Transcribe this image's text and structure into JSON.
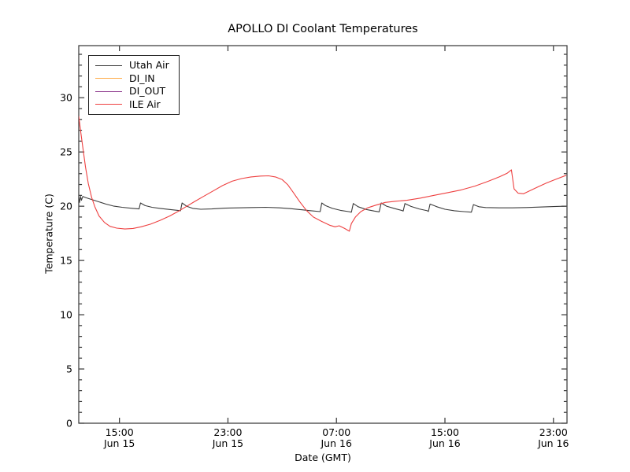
{
  "title": "APOLLO DI Coolant Temperatures",
  "axes": {
    "xlabel": "Date (GMT)",
    "ylabel": "Temperature (C)"
  },
  "legend": {
    "position": "upper left",
    "items": [
      {
        "label": "Utah Air",
        "color": "#3c3c3c"
      },
      {
        "label": "DI_IN",
        "color": "#ffaa44"
      },
      {
        "label": "DI_OUT",
        "color": "#8e3a8e"
      },
      {
        "label": "ILE Air",
        "color": "#ee4040"
      }
    ]
  },
  "chart_data": {
    "type": "line",
    "title": "APOLLO DI Coolant Temperatures",
    "xlabel": "Date (GMT)",
    "ylabel": "Temperature (C)",
    "x_unit": "hours since Jun 15 00:00 GMT",
    "xlim": [
      12,
      48
    ],
    "ylim": [
      0,
      34.8
    ],
    "grid": false,
    "yticks": [
      0,
      5,
      10,
      15,
      20,
      25,
      30
    ],
    "y_minor_step": 1,
    "xticks": [
      {
        "t": 15,
        "time": "15:00",
        "date": "Jun 15"
      },
      {
        "t": 23,
        "time": "23:00",
        "date": "Jun 15"
      },
      {
        "t": 31,
        "time": "07:00",
        "date": "Jun 16"
      },
      {
        "t": 39,
        "time": "15:00",
        "date": "Jun 16"
      },
      {
        "t": 47,
        "time": "23:00",
        "date": "Jun 16"
      }
    ],
    "series": [
      {
        "name": "Utah Air",
        "color": "#3c3c3c",
        "points": [
          [
            12.0,
            21.0
          ],
          [
            12.06,
            20.35
          ],
          [
            12.14,
            20.9
          ],
          [
            12.2,
            20.55
          ],
          [
            12.3,
            20.9
          ],
          [
            12.5,
            20.8
          ],
          [
            13.0,
            20.6
          ],
          [
            13.5,
            20.4
          ],
          [
            14.0,
            20.2
          ],
          [
            14.6,
            20.0
          ],
          [
            15.2,
            19.9
          ],
          [
            16.0,
            19.8
          ],
          [
            16.45,
            19.75
          ],
          [
            16.55,
            20.3
          ],
          [
            16.9,
            20.05
          ],
          [
            17.4,
            19.9
          ],
          [
            18.0,
            19.8
          ],
          [
            18.7,
            19.7
          ],
          [
            19.3,
            19.62
          ],
          [
            19.5,
            19.58
          ],
          [
            19.62,
            20.3
          ],
          [
            19.95,
            20.0
          ],
          [
            20.4,
            19.8
          ],
          [
            21.0,
            19.72
          ],
          [
            21.8,
            19.75
          ],
          [
            22.8,
            19.82
          ],
          [
            23.8,
            19.85
          ],
          [
            24.8,
            19.88
          ],
          [
            25.8,
            19.9
          ],
          [
            26.8,
            19.85
          ],
          [
            27.6,
            19.78
          ],
          [
            28.4,
            19.68
          ],
          [
            29.0,
            19.6
          ],
          [
            29.8,
            19.5
          ],
          [
            29.92,
            20.3
          ],
          [
            30.2,
            20.05
          ],
          [
            30.7,
            19.8
          ],
          [
            31.3,
            19.62
          ],
          [
            31.9,
            19.5
          ],
          [
            32.1,
            19.45
          ],
          [
            32.24,
            20.25
          ],
          [
            32.6,
            19.95
          ],
          [
            33.2,
            19.7
          ],
          [
            33.8,
            19.55
          ],
          [
            34.15,
            19.48
          ],
          [
            34.3,
            20.3
          ],
          [
            34.7,
            20.0
          ],
          [
            35.3,
            19.78
          ],
          [
            35.85,
            19.6
          ],
          [
            35.92,
            19.55
          ],
          [
            36.05,
            20.25
          ],
          [
            36.5,
            19.98
          ],
          [
            37.1,
            19.75
          ],
          [
            37.7,
            19.58
          ],
          [
            37.78,
            19.52
          ],
          [
            37.9,
            20.2
          ],
          [
            38.4,
            19.95
          ],
          [
            39.0,
            19.72
          ],
          [
            39.7,
            19.58
          ],
          [
            40.4,
            19.5
          ],
          [
            40.95,
            19.45
          ],
          [
            41.1,
            20.15
          ],
          [
            41.5,
            19.95
          ],
          [
            42.0,
            19.88
          ],
          [
            43.0,
            19.85
          ],
          [
            44.0,
            19.85
          ],
          [
            45.0,
            19.88
          ],
          [
            46.0,
            19.92
          ],
          [
            47.0,
            19.97
          ],
          [
            47.95,
            20.0
          ]
        ]
      },
      {
        "name": "DI_IN",
        "color": "#ffaa44",
        "points": []
      },
      {
        "name": "DI_OUT",
        "color": "#8e3a8e",
        "points": []
      },
      {
        "name": "ILE Air",
        "color": "#ee4040",
        "points": [
          [
            12.0,
            28.3
          ],
          [
            12.15,
            26.8
          ],
          [
            12.3,
            25.4
          ],
          [
            12.5,
            23.6
          ],
          [
            12.7,
            22.1
          ],
          [
            12.95,
            20.8
          ],
          [
            13.2,
            19.9
          ],
          [
            13.5,
            19.1
          ],
          [
            13.9,
            18.5
          ],
          [
            14.3,
            18.15
          ],
          [
            14.8,
            17.98
          ],
          [
            15.4,
            17.9
          ],
          [
            16.0,
            17.95
          ],
          [
            16.6,
            18.1
          ],
          [
            17.3,
            18.35
          ],
          [
            18.0,
            18.7
          ],
          [
            18.7,
            19.1
          ],
          [
            19.3,
            19.5
          ],
          [
            19.9,
            19.95
          ],
          [
            20.5,
            20.4
          ],
          [
            21.2,
            20.9
          ],
          [
            21.9,
            21.4
          ],
          [
            22.6,
            21.9
          ],
          [
            23.3,
            22.3
          ],
          [
            24.0,
            22.55
          ],
          [
            24.7,
            22.7
          ],
          [
            25.4,
            22.78
          ],
          [
            26.0,
            22.8
          ],
          [
            26.5,
            22.7
          ],
          [
            27.0,
            22.45
          ],
          [
            27.4,
            22.0
          ],
          [
            27.8,
            21.3
          ],
          [
            28.3,
            20.4
          ],
          [
            28.8,
            19.6
          ],
          [
            29.3,
            19.0
          ],
          [
            29.9,
            18.6
          ],
          [
            30.5,
            18.25
          ],
          [
            30.9,
            18.1
          ],
          [
            31.2,
            18.2
          ],
          [
            31.6,
            17.95
          ],
          [
            31.95,
            17.7
          ],
          [
            32.1,
            18.4
          ],
          [
            32.4,
            19.0
          ],
          [
            32.8,
            19.5
          ],
          [
            33.3,
            19.85
          ],
          [
            33.9,
            20.1
          ],
          [
            34.6,
            20.35
          ],
          [
            35.3,
            20.45
          ],
          [
            36.2,
            20.55
          ],
          [
            37.2,
            20.75
          ],
          [
            38.2,
            21.0
          ],
          [
            39.2,
            21.25
          ],
          [
            40.2,
            21.5
          ],
          [
            41.2,
            21.85
          ],
          [
            42.2,
            22.3
          ],
          [
            43.0,
            22.7
          ],
          [
            43.6,
            23.05
          ],
          [
            43.9,
            23.35
          ],
          [
            44.1,
            21.6
          ],
          [
            44.4,
            21.2
          ],
          [
            44.8,
            21.15
          ],
          [
            45.3,
            21.45
          ],
          [
            45.9,
            21.8
          ],
          [
            46.5,
            22.15
          ],
          [
            47.2,
            22.5
          ],
          [
            47.95,
            22.85
          ]
        ]
      }
    ]
  }
}
